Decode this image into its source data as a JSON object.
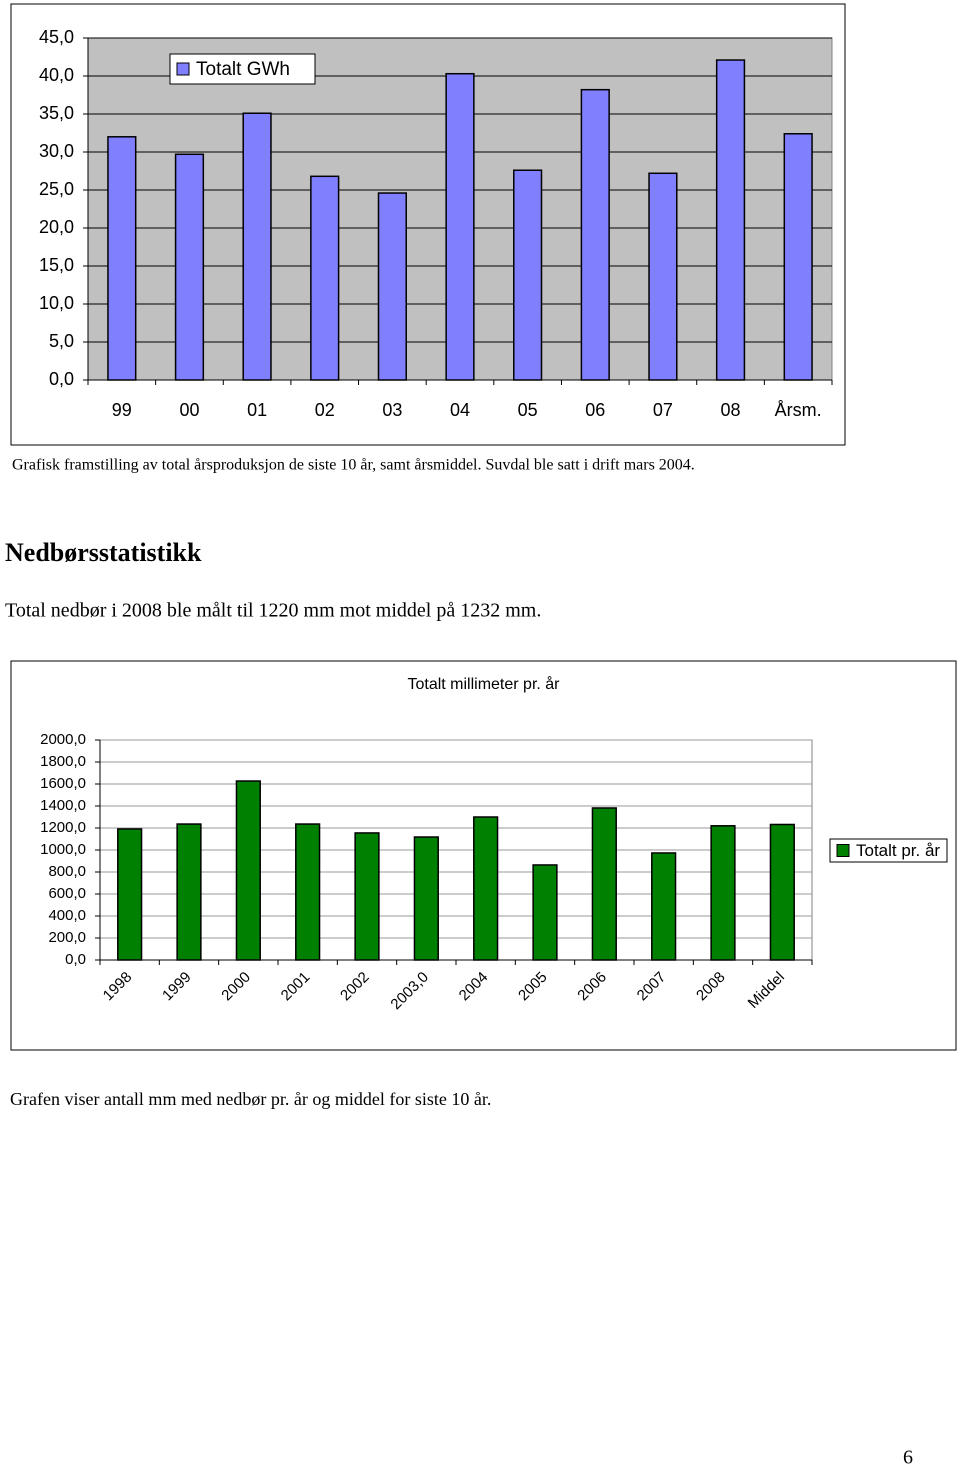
{
  "chart_data": [
    {
      "type": "bar",
      "categories": [
        "99",
        "00",
        "01",
        "02",
        "03",
        "04",
        "05",
        "06",
        "07",
        "08",
        "Årsm."
      ],
      "series": [
        {
          "name": "Totalt GWh",
          "color": "#8080ff",
          "values": [
            32.0,
            29.7,
            35.1,
            26.8,
            24.6,
            40.3,
            27.6,
            38.2,
            27.2,
            42.1,
            32.4
          ]
        }
      ],
      "ylim": [
        0,
        45
      ],
      "yticks": [
        {
          "value": 0,
          "label": "0,0"
        },
        {
          "value": 5,
          "label": "5,0"
        },
        {
          "value": 10,
          "label": "10,0"
        },
        {
          "value": 15,
          "label": "15,0"
        },
        {
          "value": 20,
          "label": "20,0"
        },
        {
          "value": 25,
          "label": "25,0"
        },
        {
          "value": 30,
          "label": "30,0"
        },
        {
          "value": 35,
          "label": "35,0"
        },
        {
          "value": 40,
          "label": "40,0"
        },
        {
          "value": 45,
          "label": "45,0"
        }
      ],
      "grid": true,
      "legend": "top-left"
    },
    {
      "type": "bar",
      "title": "Totalt millimeter pr. år",
      "categories": [
        "1998",
        "1999",
        "2000",
        "2001",
        "2002",
        "2003,0",
        "2004",
        "2005",
        "2006",
        "2007",
        "2008",
        "Middel"
      ],
      "series": [
        {
          "name": "Totalt pr. år",
          "color": "#008000",
          "values": [
            1191,
            1236,
            1627,
            1236,
            1155,
            1118,
            1300,
            864,
            1382,
            973,
            1220,
            1232
          ]
        }
      ],
      "ylim": [
        0,
        2000
      ],
      "yticks": [
        {
          "value": 0,
          "label": "0,0"
        },
        {
          "value": 200,
          "label": "200,0"
        },
        {
          "value": 400,
          "label": "400,0"
        },
        {
          "value": 600,
          "label": "600,0"
        },
        {
          "value": 800,
          "label": "800,0"
        },
        {
          "value": 1000,
          "label": "1000,0"
        },
        {
          "value": 1200,
          "label": "1200,0"
        },
        {
          "value": 1400,
          "label": "1400,0"
        },
        {
          "value": 1600,
          "label": "1600,0"
        },
        {
          "value": 1800,
          "label": "1800,0"
        },
        {
          "value": 2000,
          "label": "2000,0"
        }
      ],
      "grid": true,
      "legend": "right"
    }
  ],
  "caption_1": "Grafisk framstilling av total årsproduksjon de siste 10 år, samt årsmiddel. Suvdal ble satt i drift mars 2004.",
  "heading": "Nedbørsstatistikk",
  "paragraph": "Total nedbør i 2008 ble målt til 1220 mm mot middel på 1232 mm.",
  "caption_2": "Grafen viser antall mm med nedbør pr. år og middel for siste 10 år.",
  "page_number": "6"
}
